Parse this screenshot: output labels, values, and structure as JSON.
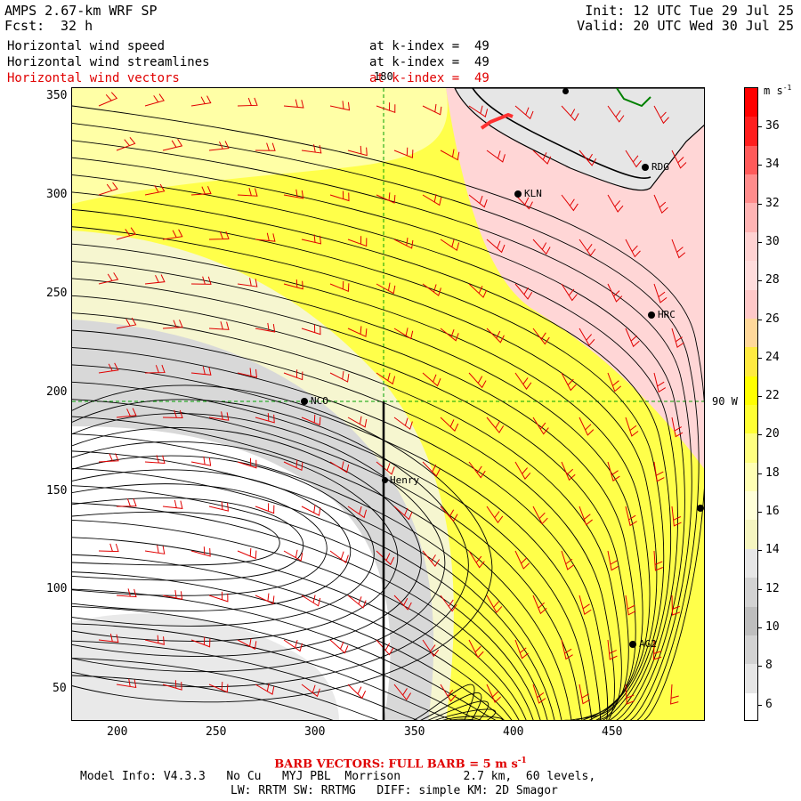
{
  "header": {
    "title": "AMPS 2.67-km WRF SP",
    "fcst_label": "Fcst:",
    "fcst_value": "32 h",
    "init": "Init: 12 UTC Tue 29 Jul 25",
    "valid": "Valid: 20 UTC Wed 30 Jul 25"
  },
  "fields": [
    {
      "name": "Horizontal wind speed",
      "level": "at k-index =  49",
      "color": "#000000"
    },
    {
      "name": "Horizontal wind streamlines",
      "level": "at k-index =  49",
      "color": "#000000"
    },
    {
      "name": "Horizontal wind vectors",
      "level": "at k-index =  49",
      "color": "#e00000"
    }
  ],
  "map": {
    "x_ticks": [
      "200",
      "250",
      "300",
      "350",
      "400",
      "450"
    ],
    "y_ticks": [
      "350",
      "300",
      "250",
      "200",
      "150",
      "100",
      "50"
    ],
    "meridian_label": "180",
    "parallel_label": "90 W",
    "stations": [
      {
        "id": "NCO"
      },
      {
        "id": "Henry"
      },
      {
        "id": "KLN"
      },
      {
        "id": "RDG"
      },
      {
        "id": "HRC"
      },
      {
        "id": "AG2"
      }
    ]
  },
  "colorbar": {
    "units_label": "m s",
    "units_exp": "-1",
    "labels": [
      "36",
      "34",
      "32",
      "30",
      "28",
      "26",
      "24",
      "22",
      "20",
      "18",
      "16",
      "14",
      "12",
      "10",
      "8",
      "6"
    ],
    "colors": [
      "#ff0000",
      "#ff1e1e",
      "#ff5a5a",
      "#ff8c8c",
      "#ffb4b4",
      "#ffd2d2",
      "#ffdcdc",
      "#ffc8c8",
      "#ffd89a",
      "#ffea40",
      "#ffff00",
      "#ffff33",
      "#ffff80",
      "#ffffb4",
      "#ffffd8",
      "#f5f5c0",
      "#e6e6e6",
      "#d2d2d2",
      "#bebebe",
      "#d2d2d2",
      "#e6e6e6",
      "#ffffff"
    ]
  },
  "footer": {
    "barb_text": "BARB VECTORS:  FULL BARB = 5 m s",
    "barb_exp": "-1",
    "model_info": "Model Info: V4.3.3   No Cu   MYJ PBL  Morrison         2.7 km,  60 levels,",
    "physics": "LW: RRTM SW: RRTMG   DIFF: simple KM: 2D Smagor"
  }
}
